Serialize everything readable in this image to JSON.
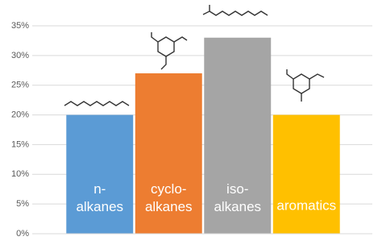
{
  "chart_data": {
    "type": "bar",
    "categories": [
      "n-alkanes",
      "cyclo-alkanes",
      "iso-alkanes",
      "aromatics"
    ],
    "values": [
      20,
      27,
      33,
      20
    ],
    "colors": [
      "#5b9bd5",
      "#ed7d31",
      "#a5a5a5",
      "#ffc000"
    ],
    "ylim": [
      0,
      35
    ],
    "yticks": [
      {
        "value": 0,
        "label": "0%"
      },
      {
        "value": 5,
        "label": "5%"
      },
      {
        "value": 10,
        "label": "10%"
      },
      {
        "value": 15,
        "label": "15%"
      },
      {
        "value": 20,
        "label": "20%"
      },
      {
        "value": 25,
        "label": "25%"
      },
      {
        "value": 30,
        "label": "30%"
      },
      {
        "value": 35,
        "label": "35%"
      }
    ],
    "grid": true
  }
}
